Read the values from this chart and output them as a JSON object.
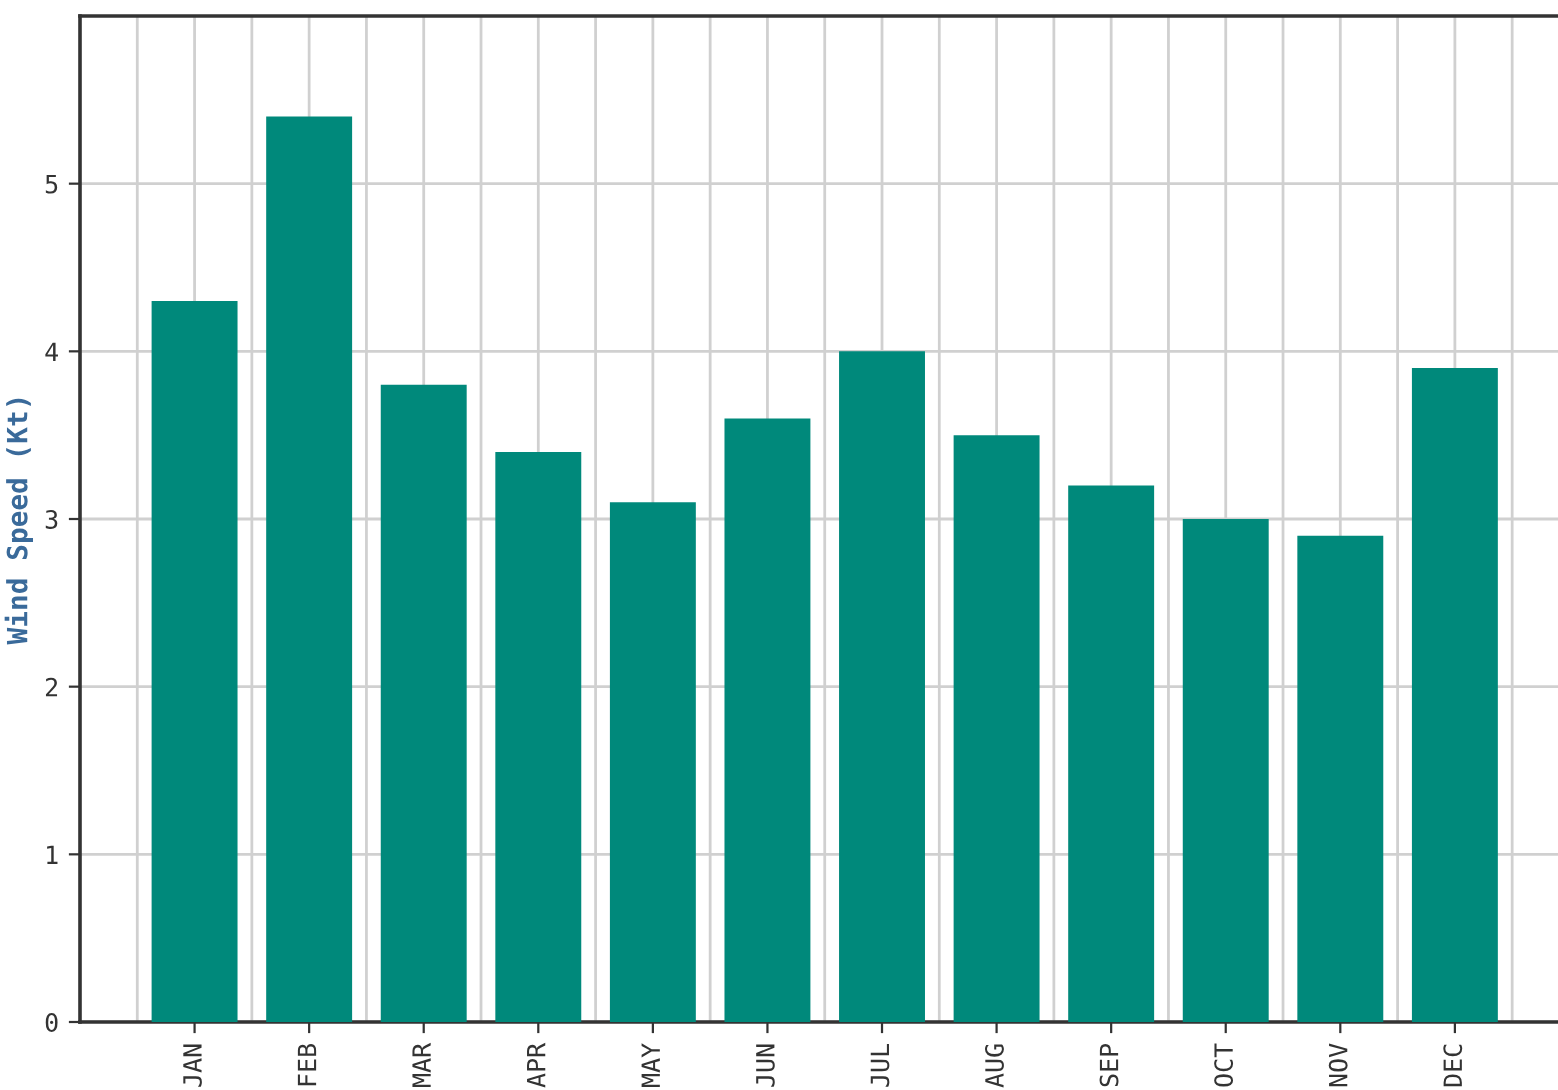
{
  "chart_data": {
    "type": "bar",
    "ylabel": "Wind Speed (Kt)",
    "categories": [
      "JAN",
      "FEB",
      "MAR",
      "APR",
      "MAY",
      "JUN",
      "JUL",
      "AUG",
      "SEP",
      "OCT",
      "NOV",
      "DEC"
    ],
    "values": [
      4.3,
      5.4,
      3.8,
      3.4,
      3.1,
      3.6,
      4.0,
      3.5,
      3.2,
      3.0,
      2.9,
      3.9
    ],
    "color": "#00897b",
    "ylim": [
      0,
      6
    ],
    "yticks": [
      0,
      1,
      2,
      3,
      4,
      5
    ],
    "grid": true
  }
}
